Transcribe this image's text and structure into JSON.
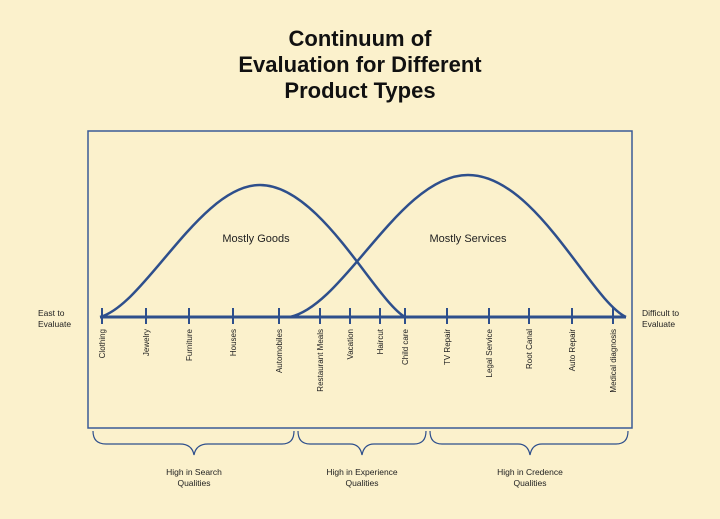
{
  "title_lines": [
    "Continuum of",
    "Evaluation for Different",
    "Product Types"
  ],
  "left_end_label": [
    "East to",
    "Evaluate"
  ],
  "right_end_label": [
    "Difficult to",
    "Evaluate"
  ],
  "curves": [
    {
      "label": "Mostly Goods"
    },
    {
      "label": "Mostly Services"
    }
  ],
  "products": [
    "Clothing",
    "Jewelry",
    "Furniture",
    "Houses",
    "Automobiles",
    "Restaurant Meals",
    "Vacation",
    "Haircut",
    "Child care",
    "TV Repair",
    "Legal Service",
    "Root Canal",
    "Auto Repair",
    "Medical diagnosis"
  ],
  "groups": [
    {
      "label": [
        "High in Search",
        "Qualities"
      ]
    },
    {
      "label": [
        "High in Experience",
        "Qualities"
      ]
    },
    {
      "label": [
        "High in Credence",
        "Qualities"
      ]
    }
  ],
  "colors": {
    "background": "#fbf1cc",
    "curve": "#2e4f8c",
    "frame": "#3a5a96",
    "axis": "#2e4f8c"
  }
}
